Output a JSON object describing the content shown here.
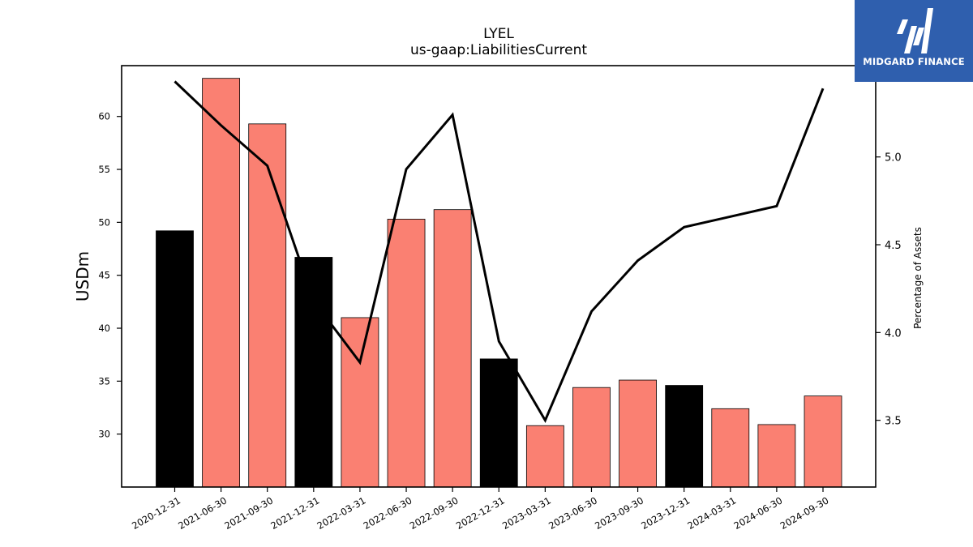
{
  "chart_data": {
    "type": "bar",
    "title": "LYEL",
    "subtitle": "us-gaap:LiabilitiesCurrent",
    "ylabel": "USDm",
    "ylabel_right": "Percentage of Assets",
    "categories": [
      "2020-12-31",
      "2021-06-30",
      "2021-09-30",
      "2021-12-31",
      "2022-03-31",
      "2022-06-30",
      "2022-09-30",
      "2022-12-31",
      "2023-03-31",
      "2023-06-30",
      "2023-09-30",
      "2023-12-31",
      "2024-03-31",
      "2024-06-30",
      "2024-09-30"
    ],
    "bar_values": [
      49.2,
      63.6,
      59.3,
      46.7,
      41.0,
      50.3,
      51.2,
      37.1,
      30.8,
      34.4,
      35.1,
      34.6,
      32.4,
      30.9,
      33.6
    ],
    "bar_colors": [
      "#000000",
      "#fa8072",
      "#fa8072",
      "#000000",
      "#fa8072",
      "#fa8072",
      "#fa8072",
      "#000000",
      "#fa8072",
      "#fa8072",
      "#fa8072",
      "#000000",
      "#fa8072",
      "#fa8072",
      "#fa8072"
    ],
    "line_values": [
      5.43,
      5.18,
      4.95,
      4.18,
      3.83,
      4.93,
      5.24,
      3.95,
      3.5,
      4.12,
      4.41,
      4.6,
      4.66,
      4.72,
      5.39
    ],
    "line_color": "#000000",
    "ylim": [
      25,
      64.8
    ],
    "ylim_right": [
      3.12,
      5.52
    ],
    "yticks": [
      30,
      35,
      40,
      45,
      50,
      55,
      60
    ],
    "yticks_right": [
      3.5,
      4.0,
      4.5,
      5.0
    ],
    "grid": false,
    "legend": "none"
  },
  "logo": {
    "text": "MIDGARD FINANCE",
    "bg_color": "#2f5fae"
  }
}
